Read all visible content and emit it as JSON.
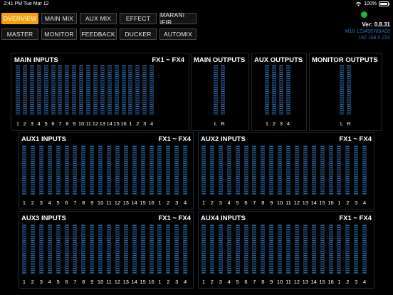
{
  "status": {
    "time": "2:41 PM",
    "date": "Tue Mar 12",
    "battery": "100%"
  },
  "nav": {
    "row1": [
      {
        "label": "OVERVIEW",
        "active": true
      },
      {
        "label": "MAIN MIX",
        "active": false
      },
      {
        "label": "AUX MIX",
        "active": false
      },
      {
        "label": "EFFECT",
        "active": false
      },
      {
        "label": "MARANI iFIR",
        "active": false
      }
    ],
    "row2": [
      {
        "label": "MASTER",
        "active": false
      },
      {
        "label": "MONITOR",
        "active": false
      },
      {
        "label": "FEEDBACK",
        "active": false
      },
      {
        "label": "DUCKER",
        "active": false
      },
      {
        "label": "AUTOMIX",
        "active": false
      }
    ]
  },
  "device": {
    "version": "Ver: 0.8.31",
    "serial": "M16-123456789A05",
    "ip": "192.168.0.220"
  },
  "panels": {
    "main_inputs": {
      "title": "MAIN INPUTS",
      "fx_title": "FX1 ~ FX4"
    },
    "main_outputs": {
      "title": "MAIN OUTPUTS"
    },
    "aux_outputs": {
      "title": "AUX OUTPUTS"
    },
    "monitor_outputs": {
      "title": "MONITOR OUTPUTS"
    },
    "aux1": {
      "title": "AUX1 INPUTS",
      "fx_title": "FX1 ~ FX4"
    },
    "aux2": {
      "title": "AUX2 INPUTS",
      "fx_title": "FX1 ~ FX4"
    },
    "aux3": {
      "title": "AUX3 INPUTS",
      "fx_title": "FX1 ~ FX4"
    },
    "aux4": {
      "title": "AUX4 INPUTS",
      "fx_title": "FX1 ~ FX4"
    }
  },
  "channel_labels": {
    "inputs": [
      "1",
      "2",
      "3",
      "4",
      "5",
      "6",
      "7",
      "8",
      "9",
      "10",
      "11",
      "12",
      "13",
      "14",
      "15",
      "16"
    ],
    "fx": [
      "1",
      "2",
      "3",
      "4"
    ],
    "main_outputs": [
      "L",
      "R"
    ],
    "aux_outputs": [
      "1",
      "2",
      "3",
      "4"
    ],
    "monitor_outputs": [
      "L",
      "R"
    ]
  }
}
